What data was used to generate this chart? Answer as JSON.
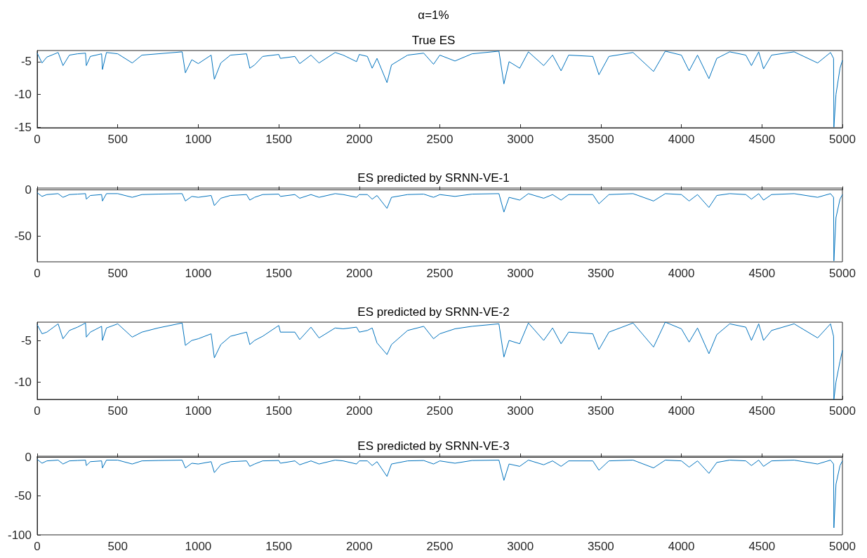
{
  "chart_data": [
    {
      "type": "line",
      "title": "α=1%",
      "subtitle": "True ES",
      "marker": "none",
      "xlim": [
        0,
        5000
      ],
      "xticks": [
        0,
        500,
        1000,
        1500,
        2000,
        2500,
        3000,
        3500,
        4000,
        4500,
        5000
      ],
      "ylim": [
        -15.1,
        -3.3
      ],
      "yticks": [
        -15,
        -10,
        -5
      ],
      "x": [
        0,
        30,
        60,
        130,
        160,
        200,
        250,
        300,
        305,
        330,
        400,
        405,
        430,
        500,
        590,
        650,
        750,
        900,
        920,
        960,
        1000,
        1080,
        1100,
        1140,
        1200,
        1300,
        1320,
        1350,
        1400,
        1500,
        1510,
        1600,
        1630,
        1700,
        1750,
        1850,
        1900,
        1983,
        2000,
        2050,
        2080,
        2110,
        2172,
        2200,
        2300,
        2400,
        2461,
        2500,
        2594,
        2700,
        2867,
        2898,
        2930,
        2996,
        3050,
        3145,
        3200,
        3253,
        3300,
        3450,
        3488,
        3550,
        3700,
        3827,
        3900,
        4000,
        4048,
        4100,
        4171,
        4220,
        4300,
        4400,
        4435,
        4480,
        4510,
        4560,
        4700,
        4846,
        4926,
        4945,
        4947,
        4960,
        4985,
        5000
      ],
      "series": [
        {
          "color": "#0072bd",
          "values": [
            -3.7,
            -5.2,
            -4.3,
            -3.6,
            -5.6,
            -4,
            -3.8,
            -3.7,
            -5.6,
            -4.2,
            -3.8,
            -6.2,
            -3.6,
            -3.8,
            -5.2,
            -4,
            -3.8,
            -3.5,
            -6.7,
            -4.7,
            -5.3,
            -4,
            -7.7,
            -5.2,
            -4,
            -3.8,
            -6,
            -5.5,
            -4.2,
            -3.9,
            -4.5,
            -4.2,
            -5.3,
            -4,
            -5.2,
            -3.6,
            -4,
            -5,
            -3.9,
            -4.2,
            -6,
            -4.5,
            -8.2,
            -5.5,
            -4,
            -3.7,
            -5.4,
            -4,
            -4.9,
            -3.8,
            -3.4,
            -8.4,
            -5,
            -6,
            -3.5,
            -5.6,
            -4,
            -6.4,
            -4,
            -4.2,
            -7,
            -4.2,
            -3.6,
            -6.5,
            -3.4,
            -4,
            -6.4,
            -4,
            -7.6,
            -4.5,
            -3.5,
            -4,
            -5.6,
            -3.5,
            -6.1,
            -4,
            -3.5,
            -5.2,
            -3.6,
            -4.5,
            -15,
            -10,
            -6,
            -4.8
          ]
        }
      ]
    },
    {
      "type": "line",
      "title": "ES predicted by SRNN-VE-1",
      "marker": "none",
      "xlim": [
        0,
        5000
      ],
      "xticks": [
        0,
        500,
        1000,
        1500,
        2000,
        2500,
        3000,
        3500,
        4000,
        4500,
        5000
      ],
      "ylim": [
        -78,
        2
      ],
      "yticks": [
        -50,
        0
      ],
      "x": [
        0,
        30,
        60,
        130,
        160,
        200,
        250,
        300,
        305,
        330,
        400,
        405,
        430,
        500,
        590,
        650,
        750,
        900,
        920,
        960,
        1000,
        1080,
        1100,
        1140,
        1200,
        1300,
        1320,
        1350,
        1400,
        1500,
        1510,
        1600,
        1630,
        1700,
        1750,
        1850,
        1900,
        1983,
        2000,
        2050,
        2080,
        2110,
        2172,
        2200,
        2300,
        2400,
        2461,
        2500,
        2594,
        2700,
        2867,
        2898,
        2930,
        2996,
        3050,
        3145,
        3200,
        3253,
        3300,
        3450,
        3488,
        3550,
        3700,
        3827,
        3900,
        4000,
        4048,
        4100,
        4171,
        4220,
        4300,
        4400,
        4435,
        4480,
        4510,
        4560,
        4700,
        4846,
        4926,
        4945,
        4947,
        4960,
        4985,
        5000
      ],
      "series": [
        {
          "color": "#0072bd",
          "values": [
            -3,
            -7,
            -5,
            -4,
            -8,
            -5,
            -4.5,
            -4,
            -10,
            -6,
            -5,
            -12,
            -4,
            -4,
            -8,
            -5,
            -4.5,
            -4,
            -12,
            -7,
            -8,
            -6,
            -17,
            -9,
            -6,
            -5,
            -11,
            -8,
            -5,
            -4.5,
            -7,
            -5,
            -9,
            -5,
            -8,
            -4,
            -5,
            -8,
            -5,
            -5,
            -10,
            -6,
            -20,
            -8,
            -5,
            -4.5,
            -8,
            -5,
            -7,
            -4.5,
            -4,
            -24,
            -8,
            -11,
            -4,
            -9,
            -5,
            -11,
            -5,
            -5,
            -15,
            -5,
            -4,
            -12,
            -4,
            -5,
            -12,
            -5,
            -19,
            -6,
            -4,
            -5,
            -10,
            -4,
            -11,
            -5,
            -4,
            -8,
            -4,
            -8,
            -77,
            -30,
            -10,
            -5
          ]
        }
      ]
    },
    {
      "type": "line",
      "title": "ES predicted by SRNN-VE-2",
      "marker": "none",
      "xlim": [
        0,
        5000
      ],
      "xticks": [
        0,
        500,
        1000,
        1500,
        2000,
        2500,
        3000,
        3500,
        4000,
        4500,
        5000
      ],
      "ylim": [
        -12.1,
        -2.8
      ],
      "yticks": [
        -10,
        -5
      ],
      "x": [
        0,
        30,
        60,
        130,
        160,
        200,
        250,
        300,
        305,
        330,
        400,
        405,
        430,
        500,
        590,
        650,
        750,
        900,
        920,
        960,
        1000,
        1080,
        1100,
        1140,
        1200,
        1300,
        1320,
        1350,
        1400,
        1500,
        1510,
        1600,
        1630,
        1700,
        1750,
        1850,
        1900,
        1983,
        2000,
        2050,
        2080,
        2110,
        2172,
        2200,
        2300,
        2400,
        2461,
        2500,
        2594,
        2700,
        2867,
        2898,
        2930,
        2996,
        3050,
        3145,
        3200,
        3253,
        3300,
        3450,
        3488,
        3550,
        3700,
        3827,
        3900,
        4000,
        4048,
        4100,
        4171,
        4220,
        4300,
        4400,
        4435,
        4480,
        4510,
        4560,
        4700,
        4846,
        4926,
        4945,
        4947,
        4960,
        4985,
        5000
      ],
      "series": [
        {
          "color": "#0072bd",
          "values": [
            -3.1,
            -4.2,
            -4,
            -3,
            -4.8,
            -3.8,
            -3.4,
            -2.9,
            -4.6,
            -4,
            -3.3,
            -5,
            -3.5,
            -3,
            -4.6,
            -4,
            -3.5,
            -2.9,
            -5.6,
            -5,
            -4.8,
            -4.2,
            -7.1,
            -5.5,
            -4.5,
            -4,
            -5.5,
            -5,
            -4.5,
            -3.2,
            -4,
            -4,
            -4.9,
            -3.4,
            -4.7,
            -3.5,
            -3.6,
            -3.4,
            -4,
            -3.8,
            -3.5,
            -5.3,
            -6.7,
            -5.5,
            -3.8,
            -3.3,
            -4.8,
            -4.2,
            -3.6,
            -3.3,
            -3,
            -7,
            -5,
            -5.4,
            -2.9,
            -5,
            -3.5,
            -5.4,
            -4,
            -4.2,
            -6.1,
            -4,
            -2.9,
            -5.8,
            -2.8,
            -3.6,
            -5.2,
            -3.5,
            -6.6,
            -4.3,
            -3,
            -3.4,
            -5,
            -3,
            -5,
            -3.8,
            -3,
            -4.7,
            -3,
            -4.5,
            -12.1,
            -10,
            -7.5,
            -6.2
          ]
        }
      ]
    },
    {
      "type": "line",
      "title": "ES predicted by SRNN-VE-3",
      "marker": "none",
      "xlim": [
        0,
        5000
      ],
      "xticks": [
        0,
        500,
        1000,
        1500,
        2000,
        2500,
        3000,
        3500,
        4000,
        4500,
        5000
      ],
      "ylim": [
        -100,
        1
      ],
      "yticks": [
        -100,
        -50,
        0
      ],
      "x": [
        0,
        30,
        60,
        130,
        160,
        200,
        250,
        300,
        305,
        330,
        400,
        405,
        430,
        500,
        590,
        650,
        750,
        900,
        920,
        960,
        1000,
        1080,
        1100,
        1140,
        1200,
        1300,
        1320,
        1350,
        1400,
        1500,
        1510,
        1600,
        1630,
        1700,
        1750,
        1850,
        1900,
        1983,
        2000,
        2050,
        2080,
        2110,
        2172,
        2200,
        2300,
        2400,
        2461,
        2500,
        2594,
        2700,
        2867,
        2898,
        2930,
        2996,
        3050,
        3145,
        3200,
        3253,
        3300,
        3450,
        3488,
        3550,
        3700,
        3827,
        3900,
        4000,
        4048,
        4100,
        4171,
        4220,
        4300,
        4400,
        4435,
        4480,
        4510,
        4560,
        4700,
        4846,
        4926,
        4945,
        4947,
        4960,
        4985,
        5000
      ],
      "series": [
        {
          "color": "#0072bd",
          "values": [
            -3,
            -8,
            -5,
            -4,
            -9,
            -5,
            -4.5,
            -4,
            -11,
            -6,
            -5,
            -14,
            -4,
            -4,
            -9,
            -5,
            -4.5,
            -4,
            -14,
            -8,
            -9,
            -6,
            -20,
            -10,
            -6,
            -5,
            -12,
            -9,
            -5,
            -4.5,
            -8,
            -5,
            -10,
            -5,
            -9,
            -4,
            -5,
            -9,
            -5,
            -5,
            -11,
            -6,
            -25,
            -9,
            -5,
            -4.5,
            -9,
            -5,
            -8,
            -4.5,
            -4,
            -30,
            -9,
            -12,
            -4,
            -10,
            -5,
            -12,
            -5,
            -5,
            -17,
            -5,
            -4,
            -14,
            -4,
            -5,
            -13,
            -5,
            -21,
            -7,
            -4,
            -5,
            -11,
            -4,
            -12,
            -5,
            -4,
            -9,
            -4,
            -9,
            -91,
            -35,
            -11,
            -5
          ]
        }
      ]
    }
  ]
}
